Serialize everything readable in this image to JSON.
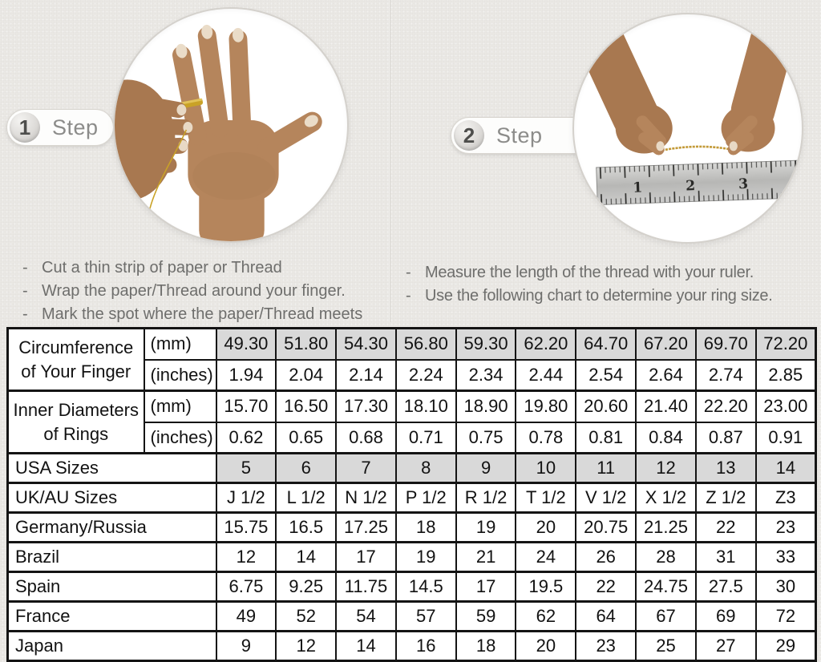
{
  "colors": {
    "background": "#eae8e4",
    "table_shade": "#d9d9d9",
    "table_border": "#141414",
    "text_gray": "#6e6e6c",
    "badge_text": "#8c8c8a",
    "gold": "#c9a227",
    "skin": "#b5855c",
    "skin_dark": "#a87850"
  },
  "steps": [
    {
      "number": "1",
      "label": "Step",
      "bullets": [
        "Cut a thin strip of paper or Thread",
        "Wrap the paper/Thread around your finger.",
        "Mark the spot where the paper/Thread meets"
      ]
    },
    {
      "number": "2",
      "label": "Step",
      "bullets": [
        "Measure the length of the thread with your ruler.",
        "Use the following chart to determine your ring size."
      ],
      "ruler_numbers": [
        "1",
        "2",
        "3"
      ]
    }
  ],
  "table": {
    "row_groups": [
      {
        "label": "Circumference of Your Finger",
        "rows": [
          {
            "unit": "(mm)",
            "shaded": true,
            "values": [
              "49.30",
              "51.80",
              "54.30",
              "56.80",
              "59.30",
              "62.20",
              "64.70",
              "67.20",
              "69.70",
              "72.20"
            ]
          },
          {
            "unit": "(inches)",
            "shaded": false,
            "values": [
              "1.94",
              "2.04",
              "2.14",
              "2.24",
              "2.34",
              "2.44",
              "2.54",
              "2.64",
              "2.74",
              "2.85"
            ]
          }
        ]
      },
      {
        "label": "Inner Diameters of Rings",
        "rows": [
          {
            "unit": "(mm)",
            "shaded": false,
            "values": [
              "15.70",
              "16.50",
              "17.30",
              "18.10",
              "18.90",
              "19.80",
              "20.60",
              "21.40",
              "22.20",
              "23.00"
            ]
          },
          {
            "unit": "(inches)",
            "shaded": false,
            "values": [
              "0.62",
              "0.65",
              "0.68",
              "0.71",
              "0.75",
              "0.78",
              "0.81",
              "0.84",
              "0.87",
              "0.91"
            ]
          }
        ]
      }
    ],
    "size_rows": [
      {
        "label": "USA Sizes",
        "shaded": true,
        "values": [
          "5",
          "6",
          "7",
          "8",
          "9",
          "10",
          "11",
          "12",
          "13",
          "14"
        ]
      },
      {
        "label": "UK/AU Sizes",
        "shaded": false,
        "values": [
          "J 1/2",
          "L 1/2",
          "N 1/2",
          "P 1/2",
          "R 1/2",
          "T 1/2",
          "V 1/2",
          "X 1/2",
          "Z 1/2",
          "Z3"
        ]
      },
      {
        "label": "Germany/Russia",
        "shaded": false,
        "values": [
          "15.75",
          "16.5",
          "17.25",
          "18",
          "19",
          "20",
          "20.75",
          "21.25",
          "22",
          "23"
        ]
      },
      {
        "label": "Brazil",
        "shaded": false,
        "values": [
          "12",
          "14",
          "17",
          "19",
          "21",
          "24",
          "26",
          "28",
          "31",
          "33"
        ]
      },
      {
        "label": "Spain",
        "shaded": false,
        "values": [
          "6.75",
          "9.25",
          "11.75",
          "14.5",
          "17",
          "19.5",
          "22",
          "24.75",
          "27.5",
          "30"
        ]
      },
      {
        "label": "France",
        "shaded": false,
        "values": [
          "49",
          "52",
          "54",
          "57",
          "59",
          "62",
          "64",
          "67",
          "69",
          "72"
        ]
      },
      {
        "label": "Japan",
        "shaded": false,
        "values": [
          "9",
          "12",
          "14",
          "16",
          "18",
          "20",
          "23",
          "25",
          "27",
          "29"
        ]
      }
    ]
  }
}
